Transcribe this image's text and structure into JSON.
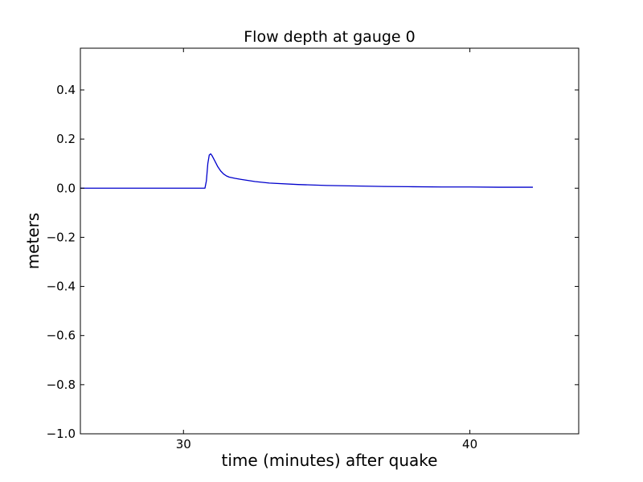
{
  "chart_data": {
    "type": "line",
    "title": "Flow depth at gauge 0",
    "xlabel": "time (minutes) after quake",
    "ylabel": "meters",
    "xlim": [
      26.4,
      43.8
    ],
    "ylim": [
      -1.0,
      0.57
    ],
    "xticks": [
      30,
      40
    ],
    "xtick_labels": [
      "30",
      "40"
    ],
    "yticks": [
      -1.0,
      -0.8,
      -0.6,
      -0.4,
      -0.2,
      0.0,
      0.2,
      0.4
    ],
    "ytick_labels": [
      "−1.0",
      "−0.8",
      "−0.6",
      "−0.4",
      "−0.2",
      "0.0",
      "0.2",
      "0.4"
    ],
    "grid": false,
    "line_color": "#0000cc",
    "series": [
      {
        "x": [
          26.4,
          28.0,
          29.0,
          30.0,
          30.6,
          30.7,
          30.75,
          30.8,
          30.85,
          30.9,
          30.95,
          31.0,
          31.1,
          31.2,
          31.3,
          31.4,
          31.5,
          31.6,
          31.8,
          32.0,
          32.5,
          33.0,
          34.0,
          35.0,
          36.0,
          37.0,
          38.0,
          39.0,
          40.0,
          41.0,
          42.0,
          42.2
        ],
        "y": [
          0.0,
          0.0,
          0.0,
          0.0,
          0.0,
          0.0,
          0.0,
          0.03,
          0.1,
          0.135,
          0.14,
          0.132,
          0.11,
          0.087,
          0.07,
          0.058,
          0.05,
          0.045,
          0.04,
          0.036,
          0.027,
          0.021,
          0.015,
          0.011,
          0.009,
          0.007,
          0.006,
          0.005,
          0.005,
          0.004,
          0.004,
          0.004
        ]
      }
    ]
  }
}
